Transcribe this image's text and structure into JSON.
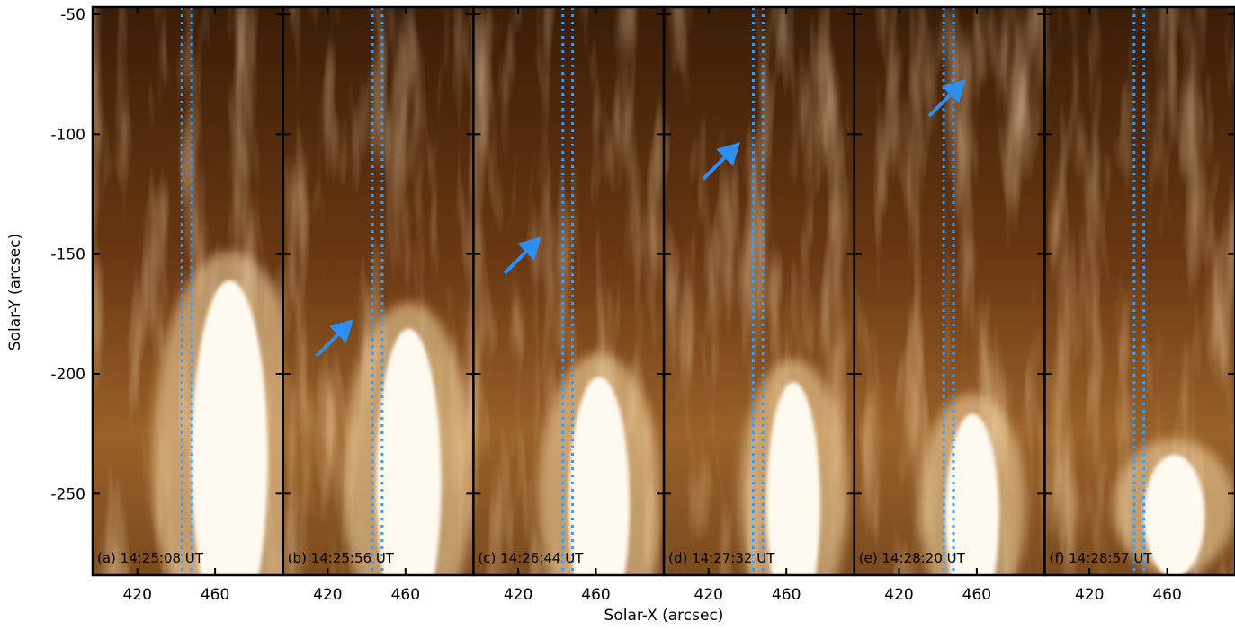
{
  "chart_data": {
    "type": "image-grid",
    "xlabel": "Solar-X (arcsec)",
    "ylabel": "Solar-Y (arcsec)",
    "xlim": [
      397,
      495
    ],
    "ylim": [
      -284,
      -47
    ],
    "xticks": [
      420,
      460
    ],
    "yticks": [
      -50,
      -100,
      -150,
      -200,
      -250
    ],
    "slit_x": [
      443,
      448
    ],
    "slit_color": "#3b9cf5",
    "panels": [
      {
        "label": "(a) 14:25:08 UT"
      },
      {
        "label": "(b) 14:25:56 UT"
      },
      {
        "label": "(c) 14:26:44 UT"
      },
      {
        "label": "(d) 14:27:32 UT"
      },
      {
        "label": "(e) 14:28:20 UT"
      },
      {
        "label": "(f) 14:28:57 UT"
      }
    ]
  }
}
